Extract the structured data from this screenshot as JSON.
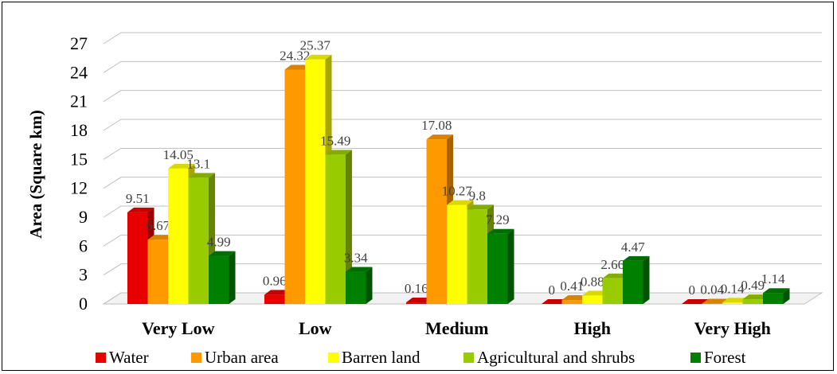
{
  "chart_data": {
    "type": "bar",
    "style": "3d-clustered-column",
    "ylabel": "Area (Square  km)",
    "xlabel": "",
    "ylim": [
      0,
      27
    ],
    "yticks": [
      0,
      3,
      6,
      9,
      12,
      15,
      18,
      21,
      24,
      27
    ],
    "grid": true,
    "legend_position": "bottom",
    "categories": [
      "Very Low",
      "Low",
      "Medium",
      "High",
      "Very High"
    ],
    "series": [
      {
        "name": "Water",
        "color": "#e60000",
        "values": [
          9.51,
          0.96,
          0.16,
          0,
          0
        ]
      },
      {
        "name": "Urban area",
        "color": "#ff9900",
        "values": [
          6.67,
          24.32,
          17.08,
          0.41,
          0.04
        ]
      },
      {
        "name": "Barren land",
        "color": "#ffff00",
        "values": [
          14.05,
          25.37,
          10.27,
          0.88,
          0.14
        ]
      },
      {
        "name": "Agricultural and shrubs",
        "color": "#99cc00",
        "values": [
          13.1,
          15.49,
          9.8,
          2.66,
          0.49
        ]
      },
      {
        "name": "Forest",
        "color": "#008000",
        "values": [
          4.99,
          3.34,
          7.29,
          4.47,
          1.14
        ]
      }
    ]
  }
}
